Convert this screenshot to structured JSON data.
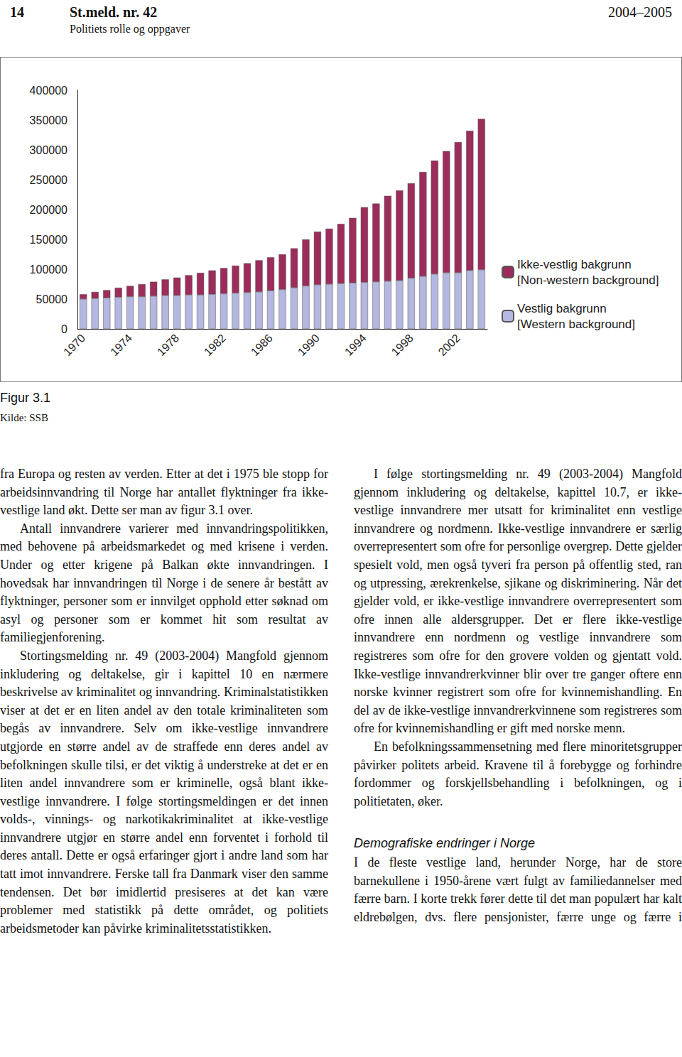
{
  "header": {
    "page": "14",
    "title": "St.meld. nr. 42",
    "years": "2004–2005",
    "subtitle": "Politiets rolle og oppgaver"
  },
  "chart_data": {
    "type": "bar",
    "stacked": true,
    "categories": [
      "1970",
      null,
      null,
      null,
      "1974",
      null,
      null,
      null,
      "1978",
      null,
      null,
      null,
      "1982",
      null,
      null,
      null,
      "1986",
      null,
      null,
      null,
      "1990",
      null,
      null,
      null,
      "1994",
      null,
      null,
      null,
      "1998",
      null,
      null,
      null,
      "2002",
      null,
      null
    ],
    "series": [
      {
        "name": "Vestlig bakgrunn\n[Western background]",
        "color": "#b4b7df",
        "values": [
          50000,
          51000,
          52000,
          53000,
          54000,
          54000,
          55000,
          56000,
          56000,
          57000,
          57000,
          58000,
          59000,
          60000,
          61000,
          62000,
          64000,
          66000,
          69000,
          72000,
          74000,
          75000,
          76000,
          77000,
          78000,
          79000,
          80000,
          81000,
          85000,
          88000,
          92000,
          94000,
          94000,
          98000,
          99000
        ]
      },
      {
        "name": "Ikke-vestlig bakgrunn\n[Non-western background]",
        "color": "#9c2d5b",
        "values": [
          8000,
          11000,
          13000,
          16000,
          18000,
          21000,
          24000,
          27000,
          30000,
          33000,
          37000,
          40000,
          43000,
          46000,
          49000,
          53000,
          56000,
          59000,
          66000,
          78000,
          89000,
          93000,
          100000,
          109000,
          126000,
          131000,
          143000,
          151000,
          159000,
          175000,
          190000,
          204000,
          219000,
          234000,
          253000
        ]
      }
    ],
    "ylim": [
      0,
      400000
    ],
    "yticks": [
      0,
      50000,
      100000,
      150000,
      200000,
      250000,
      300000,
      350000,
      400000
    ],
    "grid": false,
    "legend": "right"
  },
  "figure": {
    "label": "Figur 3.1",
    "source": "Kilde: SSB"
  },
  "columns": [
    [
      {
        "type": "paragraph",
        "text": "fra Europa og resten av verden. Etter at det i 1975 ble stopp for arbeidsinnvandring til Norge har antallet flyktninger fra ikke-vestlige land økt. Dette ser man av figur 3.1 over."
      },
      {
        "type": "paragraph",
        "text": "Antall innvandrere varierer med innvandringspolitikken, med behovene på arbeidsmarkedet og med krisene i verden. Under og etter krigene på Balkan økte innvandringen. I hovedsak har innvandringen til Norge i de senere år bestått av flyktninger, personer som er innvilget opphold etter søknad om asyl og personer som er kommet hit som resultat av familiegjenforening."
      },
      {
        "type": "paragraph",
        "text": "Stortingsmelding nr. 49 (2003-2004) Mangfold gjennom inkludering og deltakelse, gir i kapittel 10 en nærmere beskrivelse av kriminalitet og innvandring. Kriminalstatistikken viser at det er en liten andel av den totale kriminaliteten som begås av innvandrere. Selv om ikke-vestlige innvandrere utgjorde en større andel av de straffede enn deres andel av befolkningen skulle tilsi, er det viktig å understreke at det er en liten andel innvandrere som er kriminelle, også blant ikke-vestlige innvandrere. I følge stortingsmeldingen er det innen volds-, vinnings- og narkotikakriminalitet at ikke-vestlige innvandrere utgjør en større andel enn forventet i forhold til deres antall. Dette er også erfaringer gjort i andre land som har tatt imot innvandrere. Ferske tall fra Danmark viser den samme tendensen. Det bør imidlertid presiseres at det kan være problemer med statistikk på dette området, og politiets arbeidsmetoder kan påvirke kriminalitetsstatistikken."
      }
    ],
    [
      {
        "type": "paragraph",
        "text": "I følge stortingsmelding nr. 49 (2003-2004) Mangfold gjennom inkludering og deltakelse, kapittel 10.7, er ikke-vestlige innvandrere mer utsatt for kriminalitet enn vestlige innvandrere og nordmenn. Ikke-vestlige innvandrere er særlig overrepresentert som ofre for personlige overgrep. Dette gjelder spesielt vold, men også tyveri fra person på offentlig sted, ran og utpressing, ærekrenkelse, sjikane og diskriminering. Når det gjelder vold, er ikke-vestlige innvandrere overrepresentert som ofre innen alle aldersgrupper. Det er flere ikke-vestlige innvandrere enn nordmenn og vestlige innvandrere som registreres som ofre for den grovere volden og gjentatt vold. Ikke-vestlige innvandrerkvinner blir over tre ganger oftere enn norske kvinner registrert som ofre for kvinnemishandling. En del av de ikke-vestlige innvandrerkvinnene som registreres som ofre for kvinnemishandling er gift med norske menn."
      },
      {
        "type": "paragraph",
        "text": "En befolkningssammensetning med flere minoritetsgrupper påvirker politets arbeid. Kravene til å forebygge og forhindre fordommer og forskjellsbehandling i befolkningen, og i politietaten, øker."
      },
      {
        "type": "heading",
        "text": "Demografiske endringer i Norge"
      },
      {
        "type": "paragraph",
        "text": "I de fleste vestlige land, herunder Norge, har de store barnekullene i 1950-årene vært fulgt av familiedannelser med færre barn. I korte trekk fører dette til det man populært har kalt eldrebølgen, dvs. flere pensjonister, færre unge og færre i"
      }
    ]
  ]
}
